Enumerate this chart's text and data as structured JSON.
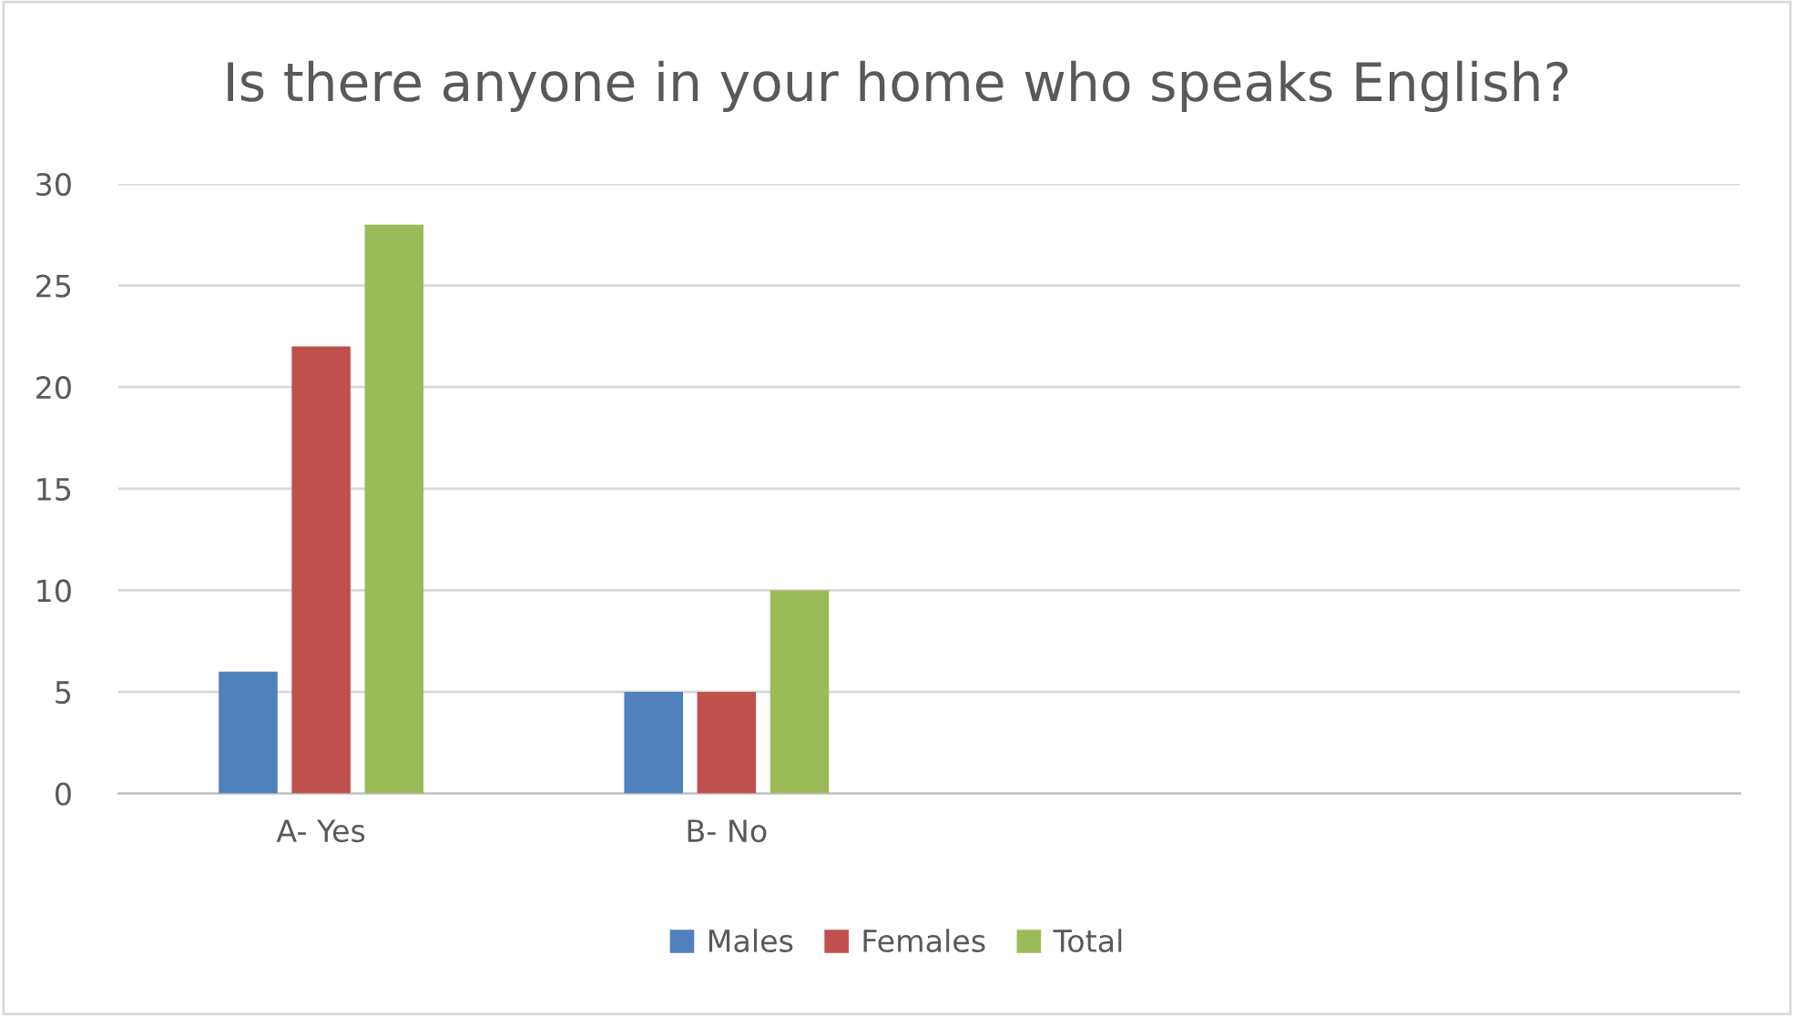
{
  "chart_data": {
    "type": "bar",
    "title": "Is there anyone in your home who speaks English?",
    "categories": [
      "A- Yes",
      "B- No",
      null,
      null
    ],
    "series": [
      {
        "name": "Males",
        "color": "#4f81bd",
        "values": [
          6,
          5,
          null,
          null
        ]
      },
      {
        "name": "Females",
        "color": "#c0504d",
        "values": [
          22,
          5,
          null,
          null
        ]
      },
      {
        "name": "Total",
        "color": "#9bbb59",
        "values": [
          28,
          10,
          null,
          null
        ]
      }
    ],
    "ylim": [
      0,
      30
    ],
    "yticks": [
      0,
      5,
      10,
      15,
      20,
      25,
      30
    ],
    "grid": "y",
    "legend": "bottom"
  }
}
